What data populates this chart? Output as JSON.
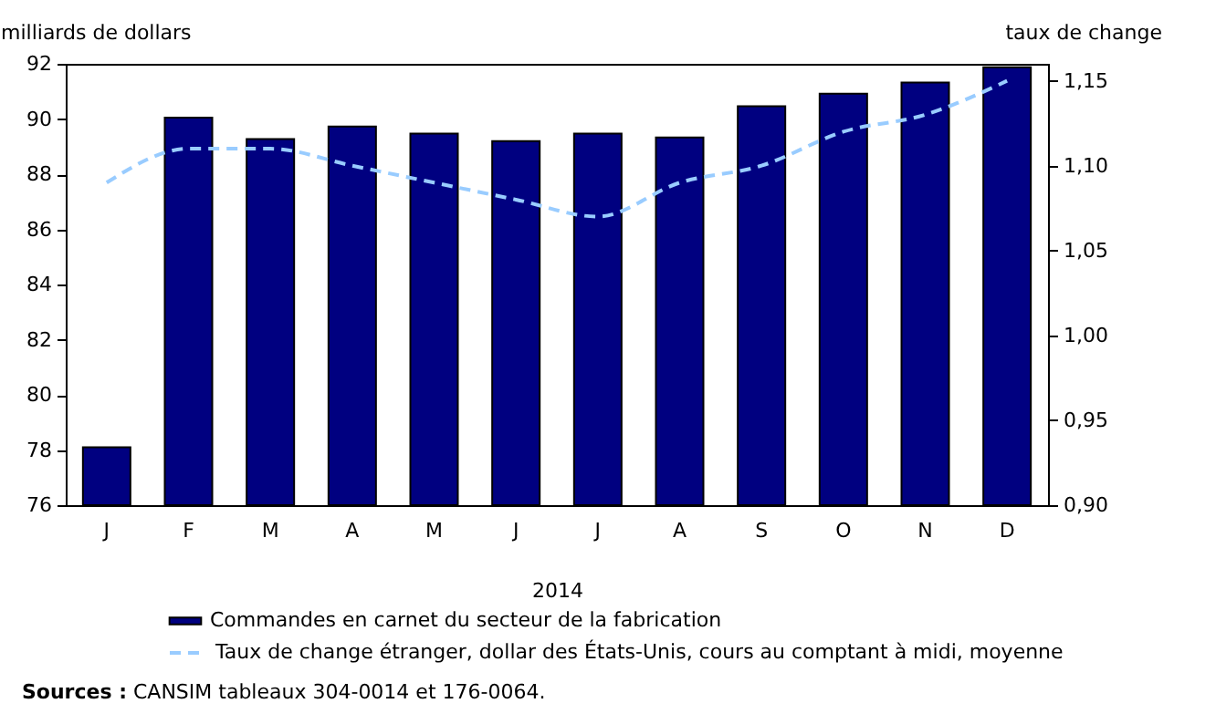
{
  "chart_data": {
    "type": "bar",
    "xlabel": "2014",
    "ylabel": "milliards de dollars",
    "y2label": "taux de change",
    "categories": [
      "J",
      "F",
      "M",
      "A",
      "M",
      "J",
      "J",
      "A",
      "S",
      "O",
      "N",
      "D"
    ],
    "series": [
      {
        "name": "Commandes en carnet du secteur de la fabrication",
        "color": "#000080",
        "values": [
          78.1,
          90.05,
          89.27,
          89.73,
          89.47,
          89.2,
          89.47,
          89.33,
          90.46,
          90.92,
          91.32,
          91.88
        ]
      },
      {
        "name": "Taux de change étranger, dollar des États-Unis, cours au comptant à midi, moyenne",
        "type": "line",
        "axis": "y2",
        "color": "#99ccff",
        "line_style": "dashed",
        "values": [
          1.09,
          1.11,
          1.11,
          1.1,
          1.09,
          1.08,
          1.07,
          1.09,
          1.1,
          1.12,
          1.13,
          1.15
        ]
      }
    ],
    "ylim": [
      76,
      92
    ],
    "yticks": [
      76,
      78,
      80,
      82,
      84,
      86,
      88,
      90,
      92
    ],
    "y2lim": [
      0.9,
      1.16
    ],
    "y2ticks": [
      {
        "value": 0.9,
        "label": "0,90"
      },
      {
        "value": 0.95,
        "label": "0,95"
      },
      {
        "value": 1.0,
        "label": "1,00"
      },
      {
        "value": 1.05,
        "label": "1,05"
      },
      {
        "value": 1.1,
        "label": "1,10"
      },
      {
        "value": 1.15,
        "label": "1,15"
      }
    ],
    "legend": "bottom",
    "annotations": [
      "Sources : CANSIM tableaux 304-0014 et 176-0064."
    ]
  }
}
